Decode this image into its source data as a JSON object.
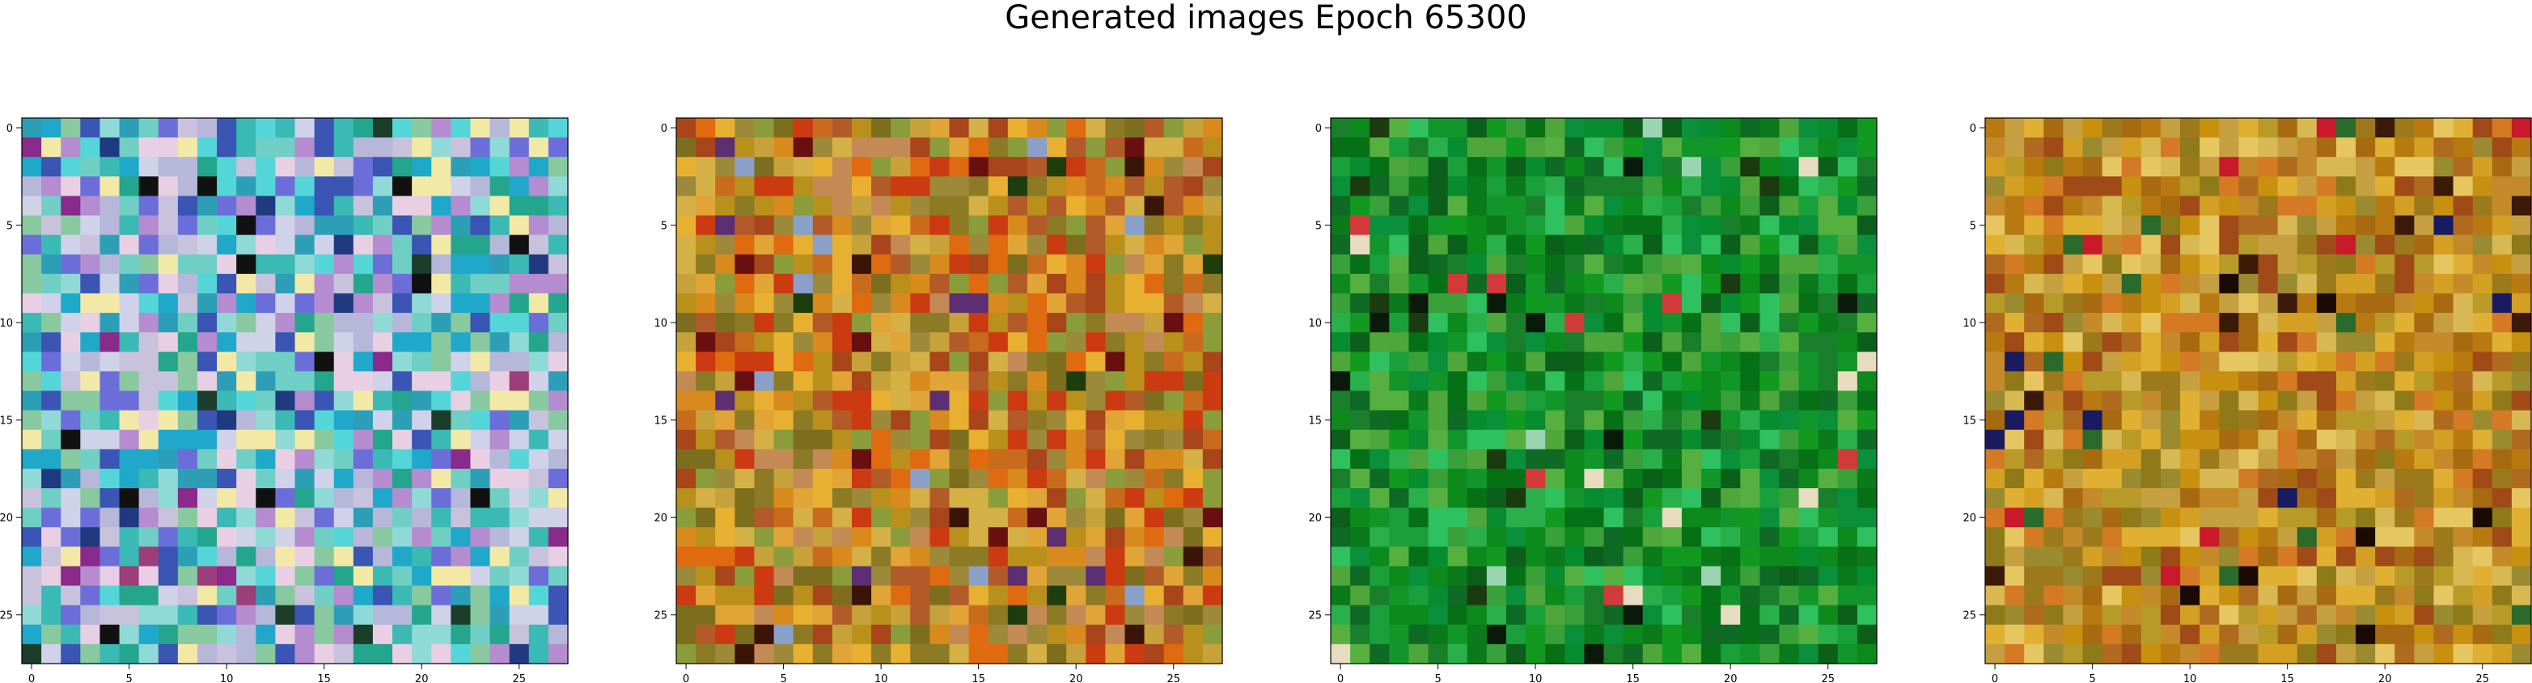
{
  "figure": {
    "title": "Generated images Epoch 65300"
  },
  "chart_data": [
    {
      "type": "heatmap",
      "image_shape": [
        28,
        28
      ],
      "xlim": [
        -0.5,
        27.5
      ],
      "ylim": [
        27.5,
        -0.5
      ],
      "xticks": [
        "0",
        "5",
        "10",
        "15",
        "20",
        "25"
      ],
      "yticks": [
        "0",
        "5",
        "10",
        "15",
        "20",
        "25"
      ],
      "palette": [
        "#3bb9b4",
        "#1fa8c9",
        "#54d6d8",
        "#8fd9d6",
        "#2c9fb7",
        "#6fcfc4",
        "#b6b7d9",
        "#c9c2dd",
        "#e8cfe3",
        "#f3e9a6",
        "#6b6ed8",
        "#3a55b3",
        "#24a58d",
        "#88c9a0",
        "#cfd2e8",
        "#b58ccf"
      ],
      "dark_accents": [
        "#111111",
        "#1b3d2a",
        "#203a80",
        "#8a2a8a",
        "#9b3e7a"
      ],
      "seed": 11
    },
    {
      "type": "heatmap",
      "image_shape": [
        28,
        28
      ],
      "xlim": [
        -0.5,
        27.5
      ],
      "ylim": [
        27.5,
        -0.5
      ],
      "xticks": [
        "0",
        "5",
        "10",
        "15",
        "20",
        "25"
      ],
      "yticks": [
        "0",
        "5",
        "10",
        "15",
        "20",
        "25"
      ],
      "palette": [
        "#b8901b",
        "#d98a1c",
        "#8c7a24",
        "#c96b1d",
        "#e0a437",
        "#a8451a",
        "#c7a23a",
        "#7d6e1e",
        "#e06a10",
        "#d4b046",
        "#b25a28",
        "#9c8a3a",
        "#cc3a12",
        "#e8b030",
        "#8a9d3a",
        "#c48a55"
      ],
      "dark_accents": [
        "#3a1406",
        "#1d3d0c",
        "#6a0f10",
        "#5d2f72",
        "#8aa0c8"
      ],
      "seed": 23
    },
    {
      "type": "heatmap",
      "image_shape": [
        28,
        28
      ],
      "xlim": [
        -0.5,
        27.5
      ],
      "ylim": [
        27.5,
        -0.5
      ],
      "xticks": [
        "0",
        "5",
        "10",
        "15",
        "20",
        "25"
      ],
      "yticks": [
        "0",
        "5",
        "10",
        "15",
        "20",
        "25"
      ],
      "palette": [
        "#0d8a1c",
        "#12962a",
        "#0a7a1a",
        "#1aa03a",
        "#2ab04a",
        "#067016",
        "#0e6a24",
        "#3aa03a",
        "#55b040",
        "#0a8f3a",
        "#1a7f2a",
        "#2fc060",
        "#0b5f1a",
        "#129a20",
        "#4fa63a",
        "#078c30"
      ],
      "dark_accents": [
        "#0a1a0a",
        "#1b3a10",
        "#e8dcc0",
        "#d23a3a",
        "#9ad4b0"
      ],
      "seed": 37
    },
    {
      "type": "heatmap",
      "image_shape": [
        28,
        28
      ],
      "xlim": [
        -0.5,
        27.5
      ],
      "ylim": [
        27.5,
        -0.5
      ],
      "xticks": [
        "0",
        "5",
        "10",
        "15",
        "20",
        "25"
      ],
      "yticks": [
        "0",
        "5",
        "10",
        "15",
        "20",
        "25"
      ],
      "palette": [
        "#c8900f",
        "#b87a10",
        "#d4a024",
        "#a86a10",
        "#e0b032",
        "#9c7a1c",
        "#c48a2a",
        "#b06a20",
        "#d8b852",
        "#8f7a1a",
        "#c6a040",
        "#a04a18",
        "#e6c660",
        "#b89a28",
        "#d47a24",
        "#9a8a30"
      ],
      "dark_accents": [
        "#1a0a04",
        "#3a1a06",
        "#c81a2a",
        "#2a6a2a",
        "#1a1a60"
      ],
      "seed": 53
    }
  ]
}
